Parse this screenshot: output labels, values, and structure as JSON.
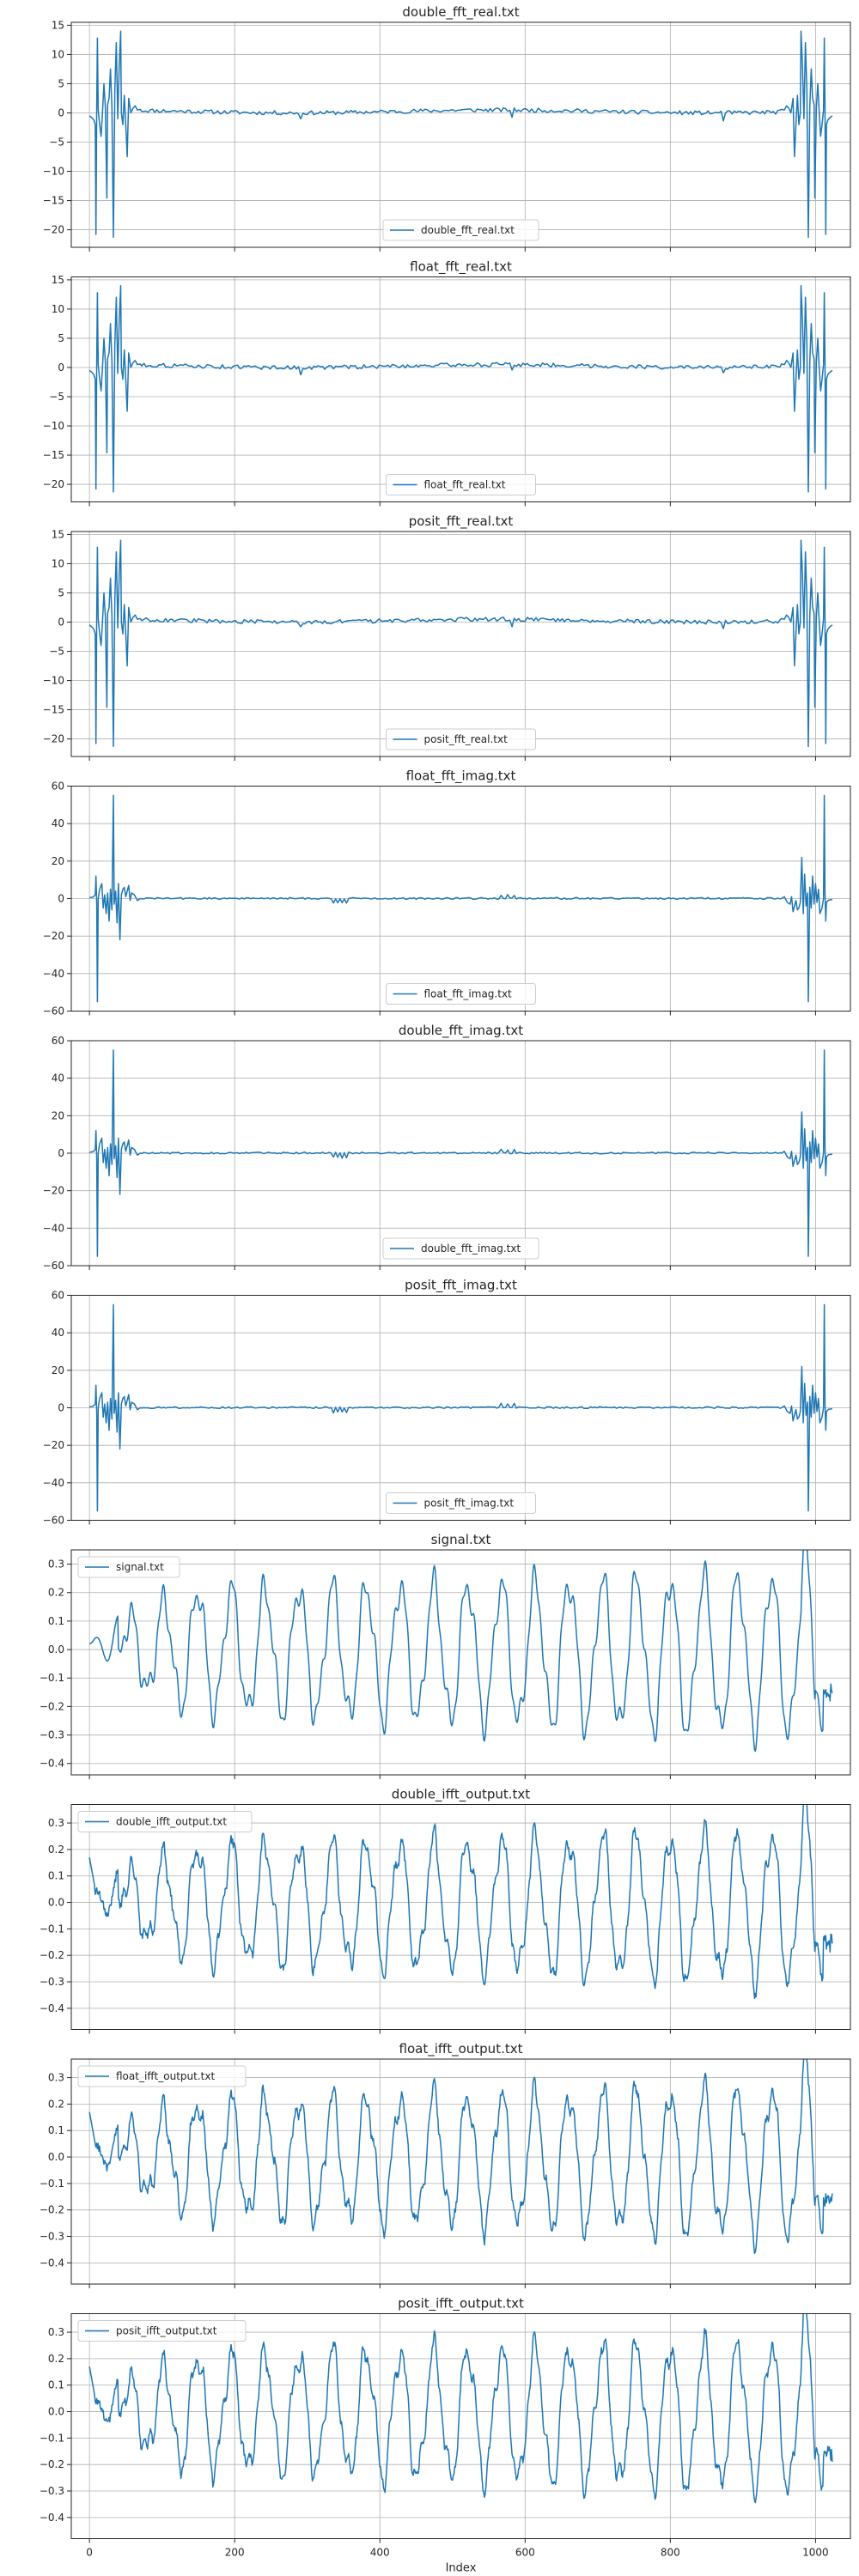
{
  "figure": {
    "xlabel": "Index",
    "line_color": "#1f77b4"
  },
  "chart_data": [
    {
      "type": "line",
      "title": "double_fft_real.txt",
      "series": [
        {
          "name": "double_fft_real.txt",
          "shape": "fft_real"
        }
      ],
      "xlim": [
        -25,
        1048
      ],
      "ylim": [
        -23,
        15.5
      ],
      "xticks": [
        0,
        200,
        400,
        600,
        800,
        1000
      ],
      "yticks": [
        15,
        10,
        5,
        0,
        -5,
        -10,
        -15,
        -20
      ],
      "legend": "lower center",
      "grid": true,
      "show_xtick_labels": false
    },
    {
      "type": "line",
      "title": "float_fft_real.txt",
      "series": [
        {
          "name": "float_fft_real.txt",
          "shape": "fft_real"
        }
      ],
      "xlim": [
        -25,
        1048
      ],
      "ylim": [
        -23,
        15.5
      ],
      "xticks": [
        0,
        200,
        400,
        600,
        800,
        1000
      ],
      "yticks": [
        15,
        10,
        5,
        0,
        -5,
        -10,
        -15,
        -20
      ],
      "legend": "lower center",
      "grid": true,
      "show_xtick_labels": false
    },
    {
      "type": "line",
      "title": "posit_fft_real.txt",
      "series": [
        {
          "name": "posit_fft_real.txt",
          "shape": "fft_real"
        }
      ],
      "xlim": [
        -25,
        1048
      ],
      "ylim": [
        -23,
        15.5
      ],
      "xticks": [
        0,
        200,
        400,
        600,
        800,
        1000
      ],
      "yticks": [
        15,
        10,
        5,
        0,
        -5,
        -10,
        -15,
        -20
      ],
      "legend": "lower center",
      "grid": true,
      "show_xtick_labels": false
    },
    {
      "type": "line",
      "title": "float_fft_imag.txt",
      "series": [
        {
          "name": "float_fft_imag.txt",
          "shape": "fft_imag"
        }
      ],
      "xlim": [
        -25,
        1048
      ],
      "ylim": [
        -60,
        60
      ],
      "xticks": [
        0,
        200,
        400,
        600,
        800,
        1000
      ],
      "yticks": [
        60,
        40,
        20,
        0,
        -20,
        -40,
        -60
      ],
      "legend": "lower center",
      "grid": true,
      "show_xtick_labels": false
    },
    {
      "type": "line",
      "title": "double_fft_imag.txt",
      "series": [
        {
          "name": "double_fft_imag.txt",
          "shape": "fft_imag"
        }
      ],
      "xlim": [
        -25,
        1048
      ],
      "ylim": [
        -60,
        60
      ],
      "xticks": [
        0,
        200,
        400,
        600,
        800,
        1000
      ],
      "yticks": [
        60,
        40,
        20,
        0,
        -20,
        -40,
        -60
      ],
      "legend": "lower center",
      "grid": true,
      "show_xtick_labels": false
    },
    {
      "type": "line",
      "title": "posit_fft_imag.txt",
      "series": [
        {
          "name": "posit_fft_imag.txt",
          "shape": "fft_imag"
        }
      ],
      "xlim": [
        -25,
        1048
      ],
      "ylim": [
        -60,
        60
      ],
      "xticks": [
        0,
        200,
        400,
        600,
        800,
        1000
      ],
      "yticks": [
        60,
        40,
        20,
        0,
        -20,
        -40,
        -60
      ],
      "legend": "lower center",
      "grid": true,
      "show_xtick_labels": false
    },
    {
      "type": "line",
      "title": "signal.txt",
      "series": [
        {
          "name": "signal.txt",
          "shape": "signal"
        }
      ],
      "xlim": [
        -25,
        1048
      ],
      "ylim": [
        -0.44,
        0.35
      ],
      "xticks": [
        0,
        200,
        400,
        600,
        800,
        1000
      ],
      "yticks": [
        0.3,
        0.2,
        0.1,
        0.0,
        -0.1,
        -0.2,
        -0.3,
        -0.4
      ],
      "ytick_labels": [
        "0.3",
        "0.2",
        "0.1",
        "0.0",
        "−0.1",
        "−0.2",
        "−0.3",
        "−0.4"
      ],
      "legend": "upper left",
      "grid": true,
      "show_xtick_labels": false
    },
    {
      "type": "line",
      "title": "double_ifft_output.txt",
      "series": [
        {
          "name": "double_ifft_output.txt",
          "shape": "ifft"
        }
      ],
      "xlim": [
        -25,
        1048
      ],
      "ylim": [
        -0.48,
        0.37
      ],
      "xticks": [
        0,
        200,
        400,
        600,
        800,
        1000
      ],
      "yticks": [
        0.3,
        0.2,
        0.1,
        0.0,
        -0.1,
        -0.2,
        -0.3,
        -0.4
      ],
      "ytick_labels": [
        "0.3",
        "0.2",
        "0.1",
        "0.0",
        "−0.1",
        "−0.2",
        "−0.3",
        "−0.4"
      ],
      "legend": "upper left",
      "grid": true,
      "show_xtick_labels": false
    },
    {
      "type": "line",
      "title": "float_ifft_output.txt",
      "series": [
        {
          "name": "float_ifft_output.txt",
          "shape": "ifft"
        }
      ],
      "xlim": [
        -25,
        1048
      ],
      "ylim": [
        -0.48,
        0.37
      ],
      "xticks": [
        0,
        200,
        400,
        600,
        800,
        1000
      ],
      "yticks": [
        0.3,
        0.2,
        0.1,
        0.0,
        -0.1,
        -0.2,
        -0.3,
        -0.4
      ],
      "ytick_labels": [
        "0.3",
        "0.2",
        "0.1",
        "0.0",
        "−0.1",
        "−0.2",
        "−0.3",
        "−0.4"
      ],
      "legend": "upper left",
      "grid": true,
      "show_xtick_labels": false
    },
    {
      "type": "line",
      "title": "posit_ifft_output.txt",
      "series": [
        {
          "name": "posit_ifft_output.txt",
          "shape": "ifft"
        }
      ],
      "xlim": [
        -25,
        1048
      ],
      "ylim": [
        -0.48,
        0.37
      ],
      "xticks": [
        0,
        200,
        400,
        600,
        800,
        1000
      ],
      "yticks": [
        0.3,
        0.2,
        0.1,
        0.0,
        -0.1,
        -0.2,
        -0.3,
        -0.4
      ],
      "ytick_labels": [
        "0.3",
        "0.2",
        "0.1",
        "0.0",
        "−0.1",
        "−0.2",
        "−0.3",
        "−0.4"
      ],
      "legend": "upper left",
      "grid": true,
      "show_xtick_labels": true
    }
  ]
}
